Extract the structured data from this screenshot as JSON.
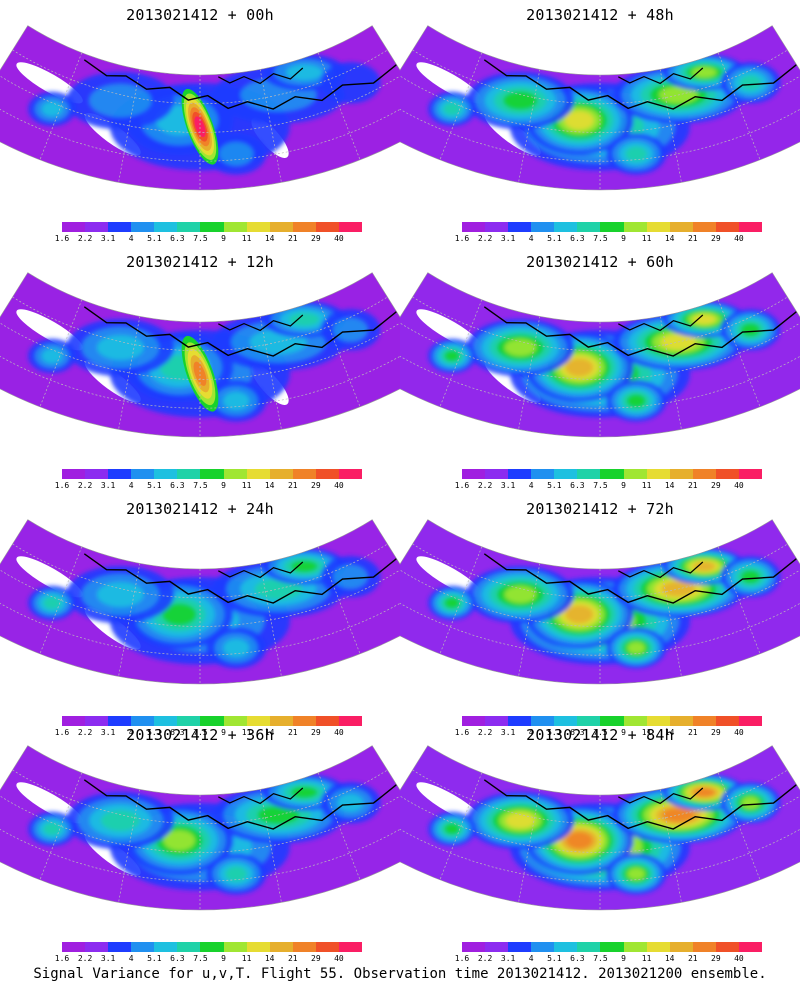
{
  "colorbar": {
    "colors": [
      "#a01fe0",
      "#8c2cf0",
      "#1e3cff",
      "#2090f0",
      "#1ec0e0",
      "#1fd2a8",
      "#18d22c",
      "#a0e632",
      "#e6dc32",
      "#e6af2d",
      "#f08228",
      "#f05028",
      "#fa1e64"
    ],
    "labels": [
      "1.6",
      "2.2",
      "3.1",
      "4",
      "5.1",
      "6.3",
      "7.5",
      "9",
      "11",
      "14",
      "21",
      "29",
      "40"
    ]
  },
  "panels": [
    {
      "title": "2013021412 + 00h",
      "level": 0
    },
    {
      "title": "2013021412 + 48h",
      "level": 4
    },
    {
      "title": "2013021412 + 12h",
      "level": 1
    },
    {
      "title": "2013021412 + 60h",
      "level": 5
    },
    {
      "title": "2013021412 + 24h",
      "level": 2
    },
    {
      "title": "2013021412 + 72h",
      "level": 6
    },
    {
      "title": "2013021412 + 36h",
      "level": 3
    },
    {
      "title": "2013021412 + 84h",
      "level": 7
    }
  ],
  "caption": "Signal Variance for u,v,T. Flight 55. Observation time 2013021412. 2013021200 ensemble."
}
